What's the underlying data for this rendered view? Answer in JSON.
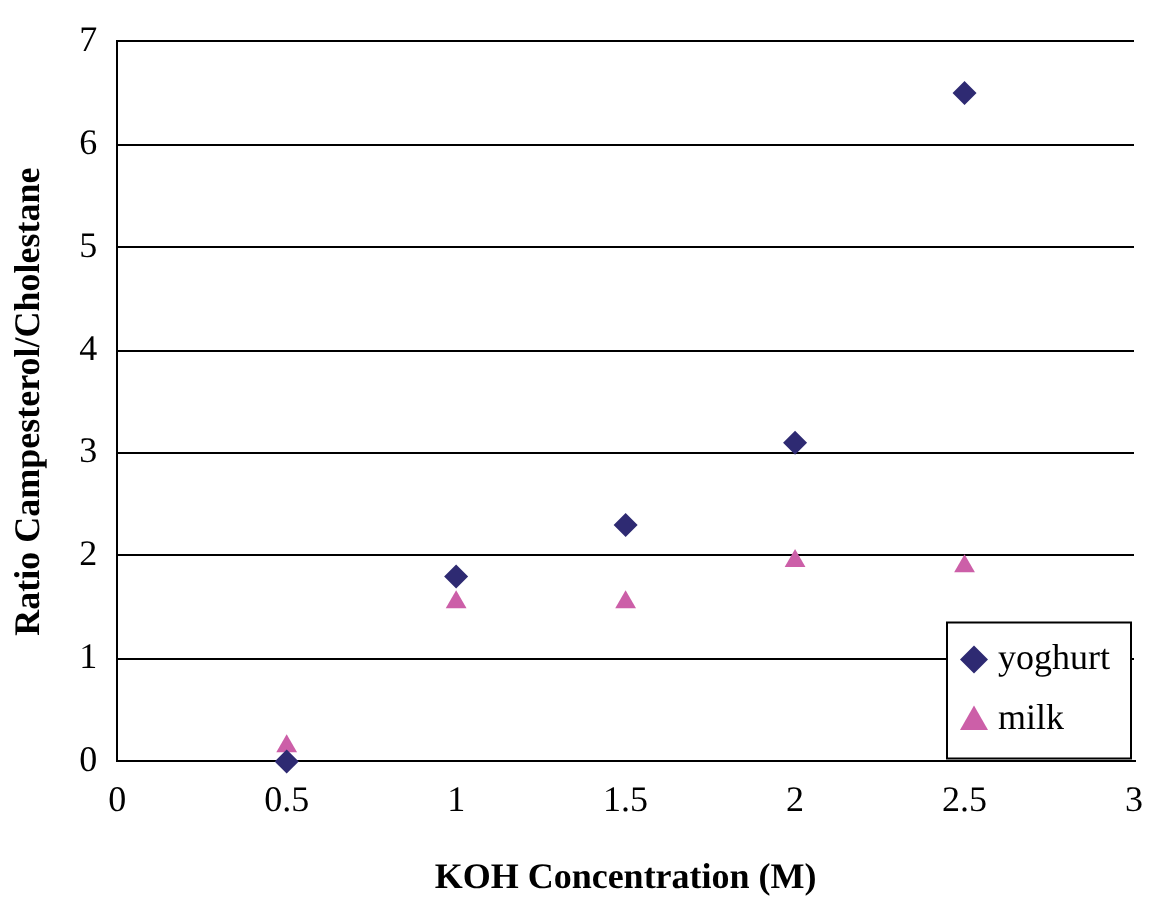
{
  "chart_data": {
    "type": "scatter",
    "xlabel": "KOH Concentration (M)",
    "ylabel": "Ratio Campesterol/Cholestane",
    "x": [
      0.5,
      1,
      1.5,
      2,
      2.5
    ],
    "series": [
      {
        "name": "yoghurt",
        "color": "#2e2a72",
        "marker": "diamond",
        "values": [
          0.0,
          1.8,
          2.3,
          3.1,
          6.5
        ]
      },
      {
        "name": "milk",
        "color": "#cc5fa8",
        "marker": "triangle",
        "values": [
          0.15,
          1.55,
          1.55,
          1.95,
          1.9
        ]
      }
    ],
    "xlim": [
      0,
      3
    ],
    "xticks": [
      0,
      0.5,
      1,
      1.5,
      2,
      2.5,
      3
    ],
    "ylim": [
      0,
      7
    ],
    "yticks": [
      0,
      1,
      2,
      3,
      4,
      5,
      6,
      7
    ],
    "grid": "y",
    "legend": "bottom right"
  }
}
